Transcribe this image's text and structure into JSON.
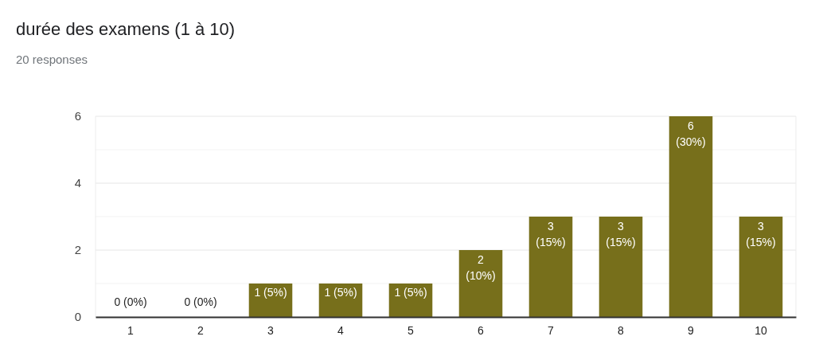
{
  "chart_data": {
    "type": "bar",
    "title": "durée des examens (1 à 10)",
    "subtitle": "20 responses",
    "categories": [
      "1",
      "2",
      "3",
      "4",
      "5",
      "6",
      "7",
      "8",
      "9",
      "10"
    ],
    "values": [
      0,
      0,
      1,
      1,
      1,
      2,
      3,
      3,
      6,
      3
    ],
    "value_labels": [
      "0 (0%)",
      "0 (0%)",
      "1 (5%)",
      "1 (5%)",
      "1 (5%)",
      "2 (10%)",
      "3 (15%)",
      "3 (15%)",
      "6 (30%)",
      "3 (15%)"
    ],
    "color": "#776f1b",
    "ylim": [
      0,
      6
    ],
    "yticks": [
      0,
      {
        "value": 1,
        "label": null
      },
      2,
      {
        "value": 3,
        "label": null
      },
      4,
      {
        "value": 5,
        "label": null
      },
      6
    ],
    "grid": "y"
  }
}
